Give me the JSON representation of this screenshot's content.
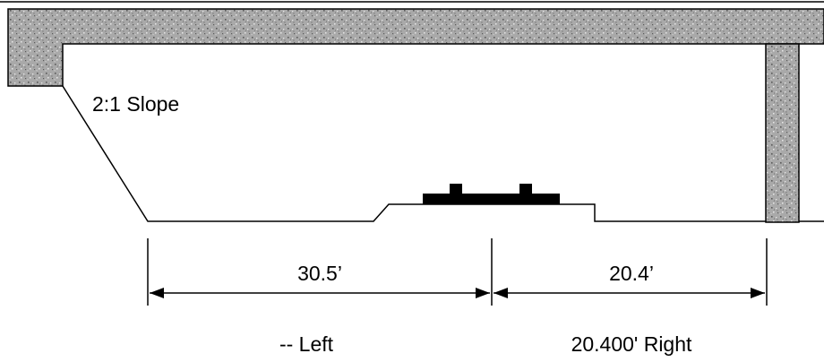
{
  "labels": {
    "slope": "2:1 Slope",
    "left_dimension": "30.5’",
    "right_dimension": "20.4’",
    "left_offset": "-- Left",
    "right_offset": "20.400' Right"
  },
  "colors": {
    "line": "#000000",
    "concrete_base": "#a9a9a9",
    "speckle_dark": "#5a5a5a",
    "speckle_light": "#e6e6e6",
    "background": "#ffffff"
  }
}
